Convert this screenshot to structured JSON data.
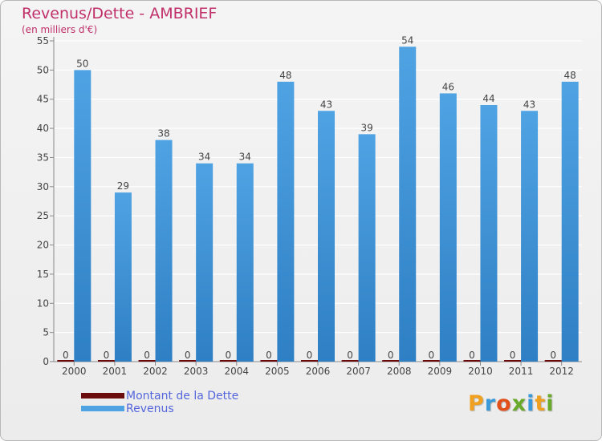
{
  "chart_data": {
    "type": "bar",
    "title": "Revenus/Dette - AMBRIEF",
    "subtitle": "(en milliers d'€)",
    "categories": [
      "2000",
      "2001",
      "2002",
      "2003",
      "2004",
      "2005",
      "2006",
      "2007",
      "2008",
      "2009",
      "2010",
      "2011",
      "2012"
    ],
    "series": [
      {
        "name": "Montant de la Dette",
        "color": "#6b0c0c",
        "values": [
          0,
          0,
          0,
          0,
          0,
          0,
          0,
          0,
          0,
          0,
          0,
          0,
          0
        ]
      },
      {
        "name": "Revenus",
        "color": "#4fa3e3",
        "values": [
          50,
          29,
          38,
          34,
          34,
          48,
          43,
          39,
          54,
          46,
          44,
          43,
          48
        ]
      }
    ],
    "ylim": [
      0,
      55
    ],
    "yticks": [
      0,
      5,
      10,
      15,
      20,
      25,
      30,
      35,
      40,
      45,
      50,
      55
    ],
    "grid": true,
    "legend_position": "bottom-left"
  },
  "logo": {
    "text": "Proxiti",
    "letters": [
      {
        "ch": "P",
        "color": "#f0a020"
      },
      {
        "ch": "r",
        "color": "#3a9ad9"
      },
      {
        "ch": "o",
        "color": "#e2501c"
      },
      {
        "ch": "x",
        "color": "#6aaa2a"
      },
      {
        "ch": "i",
        "color": "#3a9ad9"
      },
      {
        "ch": "t",
        "color": "#f0a020"
      },
      {
        "ch": "i",
        "color": "#6aaa2a"
      }
    ]
  }
}
